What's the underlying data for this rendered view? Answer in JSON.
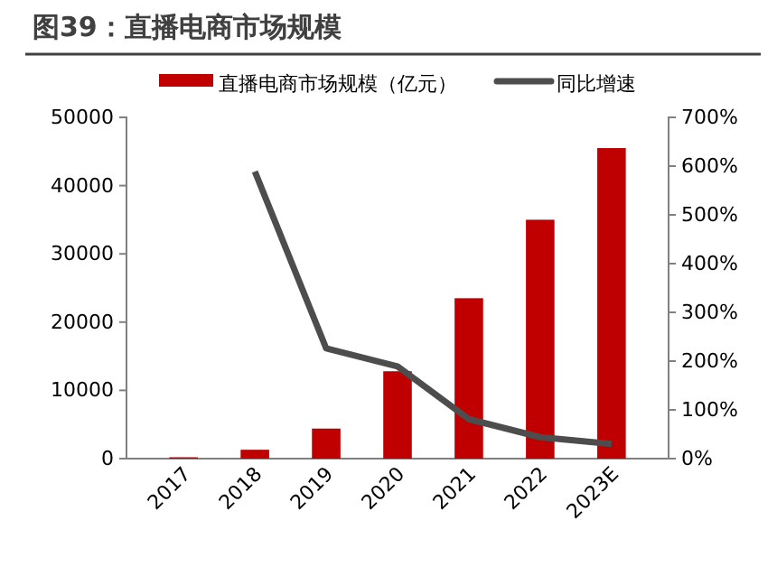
{
  "chart_data": {
    "type": "bar",
    "title": "图39：直播电商市场规模",
    "categories": [
      "2017",
      "2018",
      "2019",
      "2020",
      "2021",
      "2022",
      "2023E"
    ],
    "series": [
      {
        "name": "直播电商市场规模（亿元）",
        "color": "#c00000",
        "values": [
          200,
          1300,
          4400,
          12800,
          23500,
          35000,
          45500
        ]
      },
      {
        "name": "同比增速",
        "type": "line",
        "axis": "y2",
        "color": "#4d4d4d",
        "values": [
          null,
          589,
          226,
          189,
          81,
          44,
          30
        ]
      }
    ],
    "ylim": [
      0,
      50000
    ],
    "yticks": [
      0,
      10000,
      20000,
      30000,
      40000,
      50000
    ],
    "y2lim": [
      0,
      700
    ],
    "y2ticks": [
      {
        "value": 0,
        "label": "0%"
      },
      {
        "value": 100,
        "label": "100%"
      },
      {
        "value": 200,
        "label": "200%"
      },
      {
        "value": 300,
        "label": "300%"
      },
      {
        "value": 400,
        "label": "400%"
      },
      {
        "value": 500,
        "label": "500%"
      },
      {
        "value": 600,
        "label": "600%"
      },
      {
        "value": 700,
        "label": "700%"
      }
    ],
    "legend": "top",
    "grid": false
  }
}
